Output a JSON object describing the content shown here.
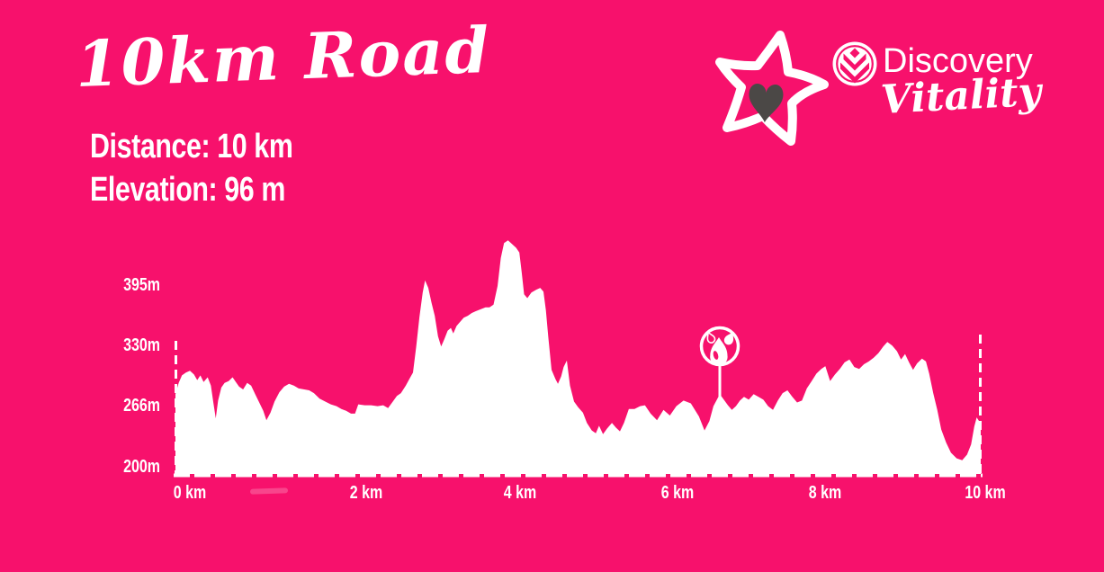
{
  "page": {
    "background_color": "#F7116C",
    "text_color": "#FFFFFF"
  },
  "header": {
    "title": "10km Road",
    "stats": {
      "distance_label": "Distance:",
      "distance_value": "10 km",
      "elevation_label": "Elevation:",
      "elevation_value": "96 m"
    }
  },
  "branding": {
    "star_heart_color": "#4B4846",
    "discovery_wordmark": "Discovery",
    "vitality_wordmark": "Vitality"
  },
  "chart_data": {
    "type": "area",
    "title": "",
    "xlabel": "",
    "ylabel": "",
    "x_unit": "km",
    "y_unit": "m",
    "x_range": [
      0,
      10
    ],
    "grid": false,
    "legend": false,
    "fill_color": "#FFFFFF",
    "y_axis_ticks": [
      {
        "label": "395m",
        "value": 395
      },
      {
        "label": "330m",
        "value": 330
      },
      {
        "label": "266m",
        "value": 266
      },
      {
        "label": "200m",
        "value": 200
      }
    ],
    "x_axis_ticks": [
      {
        "label": "0 km",
        "value": 0
      },
      {
        "label": "2 km",
        "value": 2
      },
      {
        "label": "4 km",
        "value": 4
      },
      {
        "label": "6 km",
        "value": 6
      },
      {
        "label": "8 km",
        "value": 8
      },
      {
        "label": "10 km",
        "value": 10
      }
    ],
    "markers": [
      {
        "name": "water-station",
        "km": 6.76
      }
    ],
    "series": [
      {
        "name": "elevation-profile",
        "points": [
          [
            0.0,
            279
          ],
          [
            0.04,
            291
          ],
          [
            0.08,
            299
          ],
          [
            0.13,
            302
          ],
          [
            0.18,
            304
          ],
          [
            0.23,
            300
          ],
          [
            0.27,
            294
          ],
          [
            0.31,
            299
          ],
          [
            0.35,
            292
          ],
          [
            0.4,
            297
          ],
          [
            0.44,
            288
          ],
          [
            0.47,
            270
          ],
          [
            0.5,
            253
          ],
          [
            0.53,
            272
          ],
          [
            0.57,
            286
          ],
          [
            0.61,
            291
          ],
          [
            0.66,
            293
          ],
          [
            0.71,
            297
          ],
          [
            0.75,
            292
          ],
          [
            0.79,
            287
          ],
          [
            0.84,
            284
          ],
          [
            0.89,
            291
          ],
          [
            0.94,
            288
          ],
          [
            0.99,
            279
          ],
          [
            1.04,
            270
          ],
          [
            1.09,
            261
          ],
          [
            1.13,
            251
          ],
          [
            1.18,
            259
          ],
          [
            1.23,
            271
          ],
          [
            1.29,
            281
          ],
          [
            1.35,
            287
          ],
          [
            1.41,
            290
          ],
          [
            1.47,
            288
          ],
          [
            1.53,
            285
          ],
          [
            1.6,
            284
          ],
          [
            1.66,
            283
          ],
          [
            1.72,
            280
          ],
          [
            1.79,
            274
          ],
          [
            1.86,
            271
          ],
          [
            1.93,
            268
          ],
          [
            2.0,
            266
          ],
          [
            2.06,
            263
          ],
          [
            2.12,
            261
          ],
          [
            2.18,
            258
          ],
          [
            2.23,
            258
          ],
          [
            2.27,
            268
          ],
          [
            2.35,
            267
          ],
          [
            2.43,
            267
          ],
          [
            2.51,
            266
          ],
          [
            2.58,
            267
          ],
          [
            2.64,
            264
          ],
          [
            2.7,
            271
          ],
          [
            2.75,
            277
          ],
          [
            2.8,
            280
          ],
          [
            2.86,
            288
          ],
          [
            2.91,
            296
          ],
          [
            2.95,
            302
          ],
          [
            2.99,
            330
          ],
          [
            3.03,
            362
          ],
          [
            3.07,
            388
          ],
          [
            3.1,
            401
          ],
          [
            3.14,
            393
          ],
          [
            3.18,
            377
          ],
          [
            3.22,
            363
          ],
          [
            3.26,
            341
          ],
          [
            3.3,
            330
          ],
          [
            3.34,
            338
          ],
          [
            3.38,
            347
          ],
          [
            3.42,
            350
          ],
          [
            3.45,
            344
          ],
          [
            3.49,
            352
          ],
          [
            3.54,
            357
          ],
          [
            3.58,
            361
          ],
          [
            3.63,
            363
          ],
          [
            3.68,
            366
          ],
          [
            3.73,
            368
          ],
          [
            3.79,
            370
          ],
          [
            3.85,
            372
          ],
          [
            3.9,
            372
          ],
          [
            3.95,
            375
          ],
          [
            4.0,
            395
          ],
          [
            4.04,
            425
          ],
          [
            4.08,
            441
          ],
          [
            4.13,
            444
          ],
          [
            4.18,
            440
          ],
          [
            4.23,
            436
          ],
          [
            4.27,
            431
          ],
          [
            4.3,
            410
          ],
          [
            4.33,
            386
          ],
          [
            4.37,
            382
          ],
          [
            4.42,
            388
          ],
          [
            4.48,
            391
          ],
          [
            4.53,
            393
          ],
          [
            4.57,
            389
          ],
          [
            4.6,
            369
          ],
          [
            4.63,
            340
          ],
          [
            4.67,
            305
          ],
          [
            4.72,
            295
          ],
          [
            4.75,
            290
          ],
          [
            4.79,
            298
          ],
          [
            4.82,
            308
          ],
          [
            4.86,
            315
          ],
          [
            4.9,
            288
          ],
          [
            4.95,
            271
          ],
          [
            5.0,
            265
          ],
          [
            5.06,
            259
          ],
          [
            5.11,
            248
          ],
          [
            5.17,
            240
          ],
          [
            5.22,
            237
          ],
          [
            5.26,
            245
          ],
          [
            5.31,
            236
          ],
          [
            5.36,
            242
          ],
          [
            5.42,
            248
          ],
          [
            5.47,
            243
          ],
          [
            5.52,
            239
          ],
          [
            5.57,
            248
          ],
          [
            5.63,
            263
          ],
          [
            5.7,
            263
          ],
          [
            5.77,
            266
          ],
          [
            5.83,
            267
          ],
          [
            5.9,
            258
          ],
          [
            5.98,
            251
          ],
          [
            6.06,
            262
          ],
          [
            6.14,
            256
          ],
          [
            6.22,
            266
          ],
          [
            6.31,
            272
          ],
          [
            6.4,
            269
          ],
          [
            6.5,
            255
          ],
          [
            6.57,
            240
          ],
          [
            6.63,
            250
          ],
          [
            6.68,
            266
          ],
          [
            6.76,
            279
          ],
          [
            6.81,
            273
          ],
          [
            6.86,
            267
          ],
          [
            6.91,
            262
          ],
          [
            6.96,
            266
          ],
          [
            7.01,
            272
          ],
          [
            7.06,
            276
          ],
          [
            7.12,
            273
          ],
          [
            7.18,
            279
          ],
          [
            7.24,
            276
          ],
          [
            7.3,
            273
          ],
          [
            7.36,
            266
          ],
          [
            7.42,
            262
          ],
          [
            7.48,
            272
          ],
          [
            7.54,
            280
          ],
          [
            7.6,
            283
          ],
          [
            7.66,
            276
          ],
          [
            7.72,
            270
          ],
          [
            7.78,
            272
          ],
          [
            7.84,
            285
          ],
          [
            7.9,
            293
          ],
          [
            7.96,
            301
          ],
          [
            8.02,
            306
          ],
          [
            8.07,
            309
          ],
          [
            8.13,
            293
          ],
          [
            8.19,
            300
          ],
          [
            8.25,
            306
          ],
          [
            8.31,
            313
          ],
          [
            8.37,
            316
          ],
          [
            8.43,
            308
          ],
          [
            8.49,
            306
          ],
          [
            8.55,
            311
          ],
          [
            8.61,
            314
          ],
          [
            8.67,
            318
          ],
          [
            8.73,
            323
          ],
          [
            8.79,
            330
          ],
          [
            8.84,
            335
          ],
          [
            8.9,
            331
          ],
          [
            8.96,
            325
          ],
          [
            9.01,
            316
          ],
          [
            9.06,
            322
          ],
          [
            9.11,
            313
          ],
          [
            9.16,
            305
          ],
          [
            9.21,
            312
          ],
          [
            9.27,
            317
          ],
          [
            9.32,
            314
          ],
          [
            9.36,
            301
          ],
          [
            9.41,
            280
          ],
          [
            9.46,
            262
          ],
          [
            9.51,
            241
          ],
          [
            9.57,
            227
          ],
          [
            9.63,
            216
          ],
          [
            9.7,
            210
          ],
          [
            9.77,
            208
          ],
          [
            9.83,
            214
          ],
          [
            9.88,
            225
          ],
          [
            9.92,
            244
          ],
          [
            9.95,
            254
          ],
          [
            9.98,
            250
          ],
          [
            10.0,
            247
          ]
        ]
      }
    ]
  }
}
